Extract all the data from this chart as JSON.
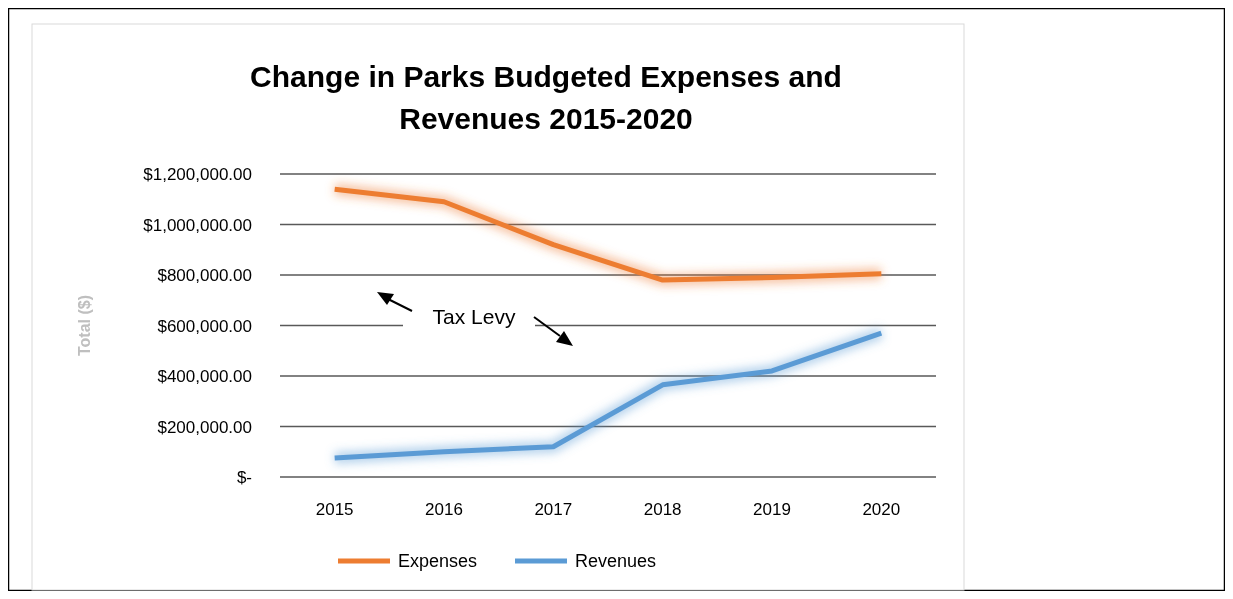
{
  "chart_data": {
    "type": "line",
    "title": "Change in Parks Budgeted Expenses and Revenues 2015-2020",
    "ylabel": "Total ($)",
    "categories": [
      "2015",
      "2016",
      "2017",
      "2018",
      "2019",
      "2020"
    ],
    "series": [
      {
        "name": "Expenses",
        "color": "#ed7d31",
        "values": [
          1140000,
          1090000,
          920000,
          780000,
          790000,
          805000
        ]
      },
      {
        "name": "Revenues",
        "color": "#5b9bd5",
        "values": [
          75000,
          100000,
          120000,
          365000,
          420000,
          570000
        ]
      }
    ],
    "ylim": [
      0,
      1200000
    ],
    "yticks": [
      {
        "value": 0,
        "label": "$-"
      },
      {
        "value": 200000,
        "label": "$200,000.00"
      },
      {
        "value": 400000,
        "label": "$400,000.00"
      },
      {
        "value": 600000,
        "label": "$600,000.00"
      },
      {
        "value": 800000,
        "label": "$800,000.00"
      },
      {
        "value": 1000000,
        "label": "$1,000,000.00"
      },
      {
        "value": 1200000,
        "label": "$1,200,000.00"
      }
    ],
    "grid": "y",
    "legend": "bottom",
    "marker": "none",
    "line_style": "solid",
    "annotations": [
      "Tax Levy"
    ]
  }
}
